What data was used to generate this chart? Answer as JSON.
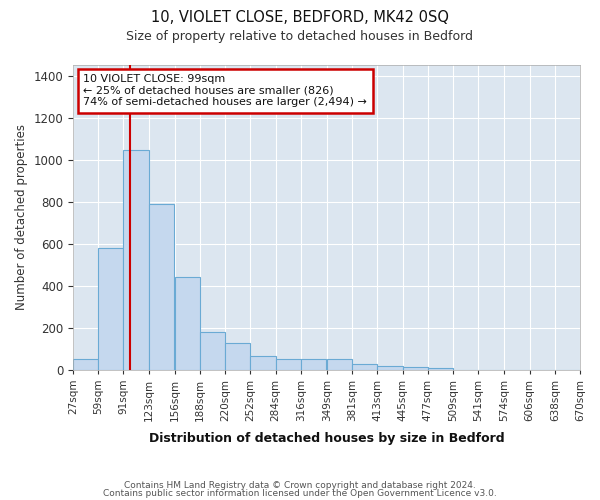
{
  "title": "10, VIOLET CLOSE, BEDFORD, MK42 0SQ",
  "subtitle": "Size of property relative to detached houses in Bedford",
  "xlabel": "Distribution of detached houses by size in Bedford",
  "ylabel": "Number of detached properties",
  "bar_color": "#c5d8ee",
  "bar_edge_color": "#6aaad4",
  "plot_bg_color": "#dce6f0",
  "fig_bg_color": "#ffffff",
  "grid_color": "#ffffff",
  "red_line_x": 99,
  "red_line_color": "#cc0000",
  "annotation_title": "10 VIOLET CLOSE: 99sqm",
  "annotation_line1": "← 25% of detached houses are smaller (826)",
  "annotation_line2": "74% of semi-detached houses are larger (2,494) →",
  "annotation_box_color": "#ffffff",
  "annotation_box_edge": "#cc0000",
  "bins": [
    27,
    59,
    91,
    123,
    156,
    188,
    220,
    252,
    284,
    316,
    349,
    381,
    413,
    445,
    477,
    509,
    541,
    574,
    606,
    638,
    670
  ],
  "bin_labels": [
    "27sqm",
    "59sqm",
    "91sqm",
    "123sqm",
    "156sqm",
    "188sqm",
    "220sqm",
    "252sqm",
    "284sqm",
    "316sqm",
    "349sqm",
    "381sqm",
    "413sqm",
    "445sqm",
    "477sqm",
    "509sqm",
    "541sqm",
    "574sqm",
    "606sqm",
    "638sqm",
    "670sqm"
  ],
  "values": [
    50,
    580,
    1045,
    790,
    440,
    180,
    125,
    65,
    50,
    50,
    50,
    25,
    20,
    15,
    10,
    0,
    0,
    0,
    0,
    0
  ],
  "ylim": [
    0,
    1450
  ],
  "yticks": [
    0,
    200,
    400,
    600,
    800,
    1000,
    1200,
    1400
  ],
  "footer1": "Contains HM Land Registry data © Crown copyright and database right 2024.",
  "footer2": "Contains public sector information licensed under the Open Government Licence v3.0."
}
